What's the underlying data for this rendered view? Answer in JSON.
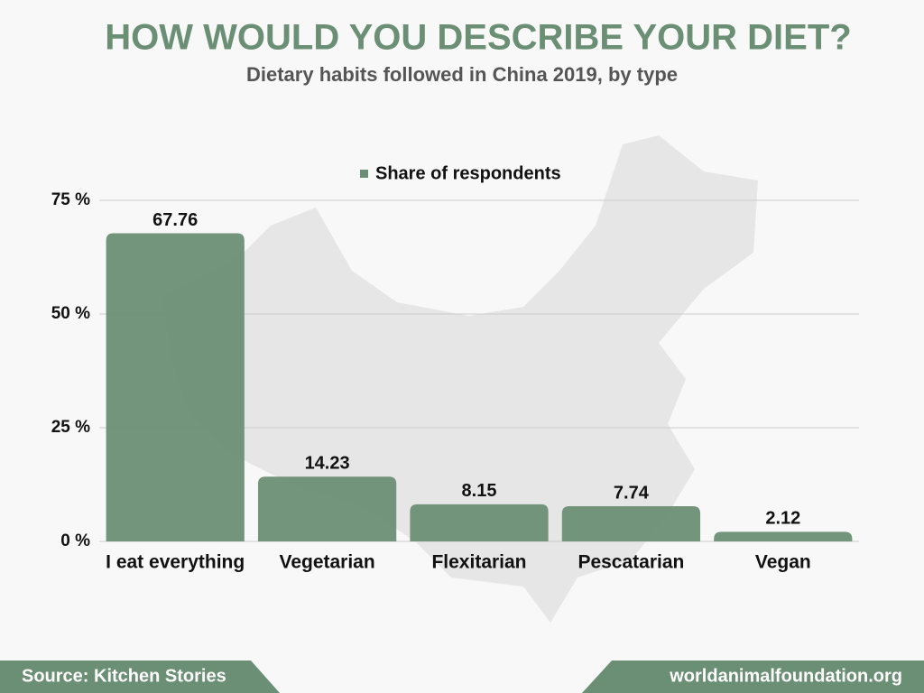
{
  "chart_data": {
    "type": "bar",
    "title": "HOW WOULD YOU DESCRIBE YOUR DIET?",
    "subtitle": "Dietary habits followed in China 2019, by type",
    "categories": [
      "I eat everything",
      "Vegetarian",
      "Flexitarian",
      "Pescatarian",
      "Vegan"
    ],
    "series": [
      {
        "name": "Share of respondents",
        "color": "#6b8f74",
        "values": [
          67.76,
          14.23,
          8.15,
          7.74,
          2.12
        ]
      }
    ],
    "ylim": [
      0,
      75
    ],
    "yticks": [
      {
        "value": 0,
        "label": "0 %"
      },
      {
        "value": 25,
        "label": "25 %"
      },
      {
        "value": 50,
        "label": "50 %"
      },
      {
        "value": 75,
        "label": "75 %"
      }
    ],
    "grid": true,
    "legend": "top",
    "source": "Source: Kitchen Stories",
    "website": "worldanimalfoundation.org"
  }
}
